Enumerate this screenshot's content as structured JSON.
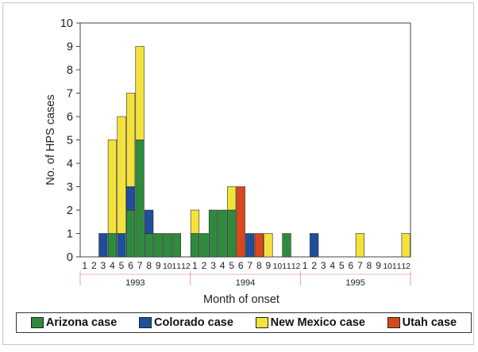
{
  "chart_data": {
    "type": "bar",
    "stacked": true,
    "ylabel": "No. of HPS cases",
    "xlabel": "Month of onset",
    "ylim": [
      0,
      10
    ],
    "yticks": [
      0,
      1,
      2,
      3,
      4,
      5,
      6,
      7,
      8,
      9,
      10
    ],
    "grid": false,
    "legend_position": "bottom",
    "years": [
      {
        "label": "1993",
        "months": [
          "1",
          "2",
          "3",
          "4",
          "5",
          "6",
          "7",
          "8",
          "9",
          "10",
          "11",
          "12"
        ]
      },
      {
        "label": "1994",
        "months": [
          "1",
          "2",
          "3",
          "4",
          "5",
          "6",
          "7",
          "8",
          "9",
          "10",
          "11",
          "12"
        ]
      },
      {
        "label": "1995",
        "months": [
          "1",
          "2",
          "3",
          "4",
          "5",
          "6",
          "7",
          "8",
          "9",
          "10",
          "11",
          "12"
        ]
      }
    ],
    "series": [
      {
        "name": "Arizona case",
        "color": "#2e8b3d",
        "values": [
          0,
          0,
          0,
          1,
          0,
          2,
          5,
          1,
          1,
          1,
          1,
          0,
          1,
          1,
          2,
          2,
          2,
          0,
          0,
          0,
          0,
          0,
          1,
          0,
          0,
          0,
          0,
          0,
          0,
          0,
          0,
          0,
          0,
          0,
          0,
          0
        ]
      },
      {
        "name": "Colorado case",
        "color": "#1f4e9c",
        "values": [
          0,
          0,
          1,
          0,
          1,
          1,
          0,
          1,
          0,
          0,
          0,
          0,
          0,
          0,
          0,
          0,
          0,
          0,
          1,
          0,
          0,
          0,
          0,
          0,
          0,
          1,
          0,
          0,
          0,
          0,
          0,
          0,
          0,
          0,
          0,
          0
        ]
      },
      {
        "name": "New Mexico case",
        "color": "#f4e23c",
        "values": [
          0,
          0,
          0,
          4,
          5,
          4,
          4,
          0,
          0,
          0,
          0,
          0,
          1,
          0,
          0,
          0,
          1,
          0,
          0,
          0,
          1,
          0,
          0,
          0,
          0,
          0,
          0,
          0,
          0,
          0,
          1,
          0,
          0,
          0,
          0,
          1
        ]
      },
      {
        "name": "Utah case",
        "color": "#d9481c",
        "values": [
          0,
          0,
          0,
          0,
          0,
          0,
          0,
          0,
          0,
          0,
          0,
          0,
          0,
          0,
          0,
          0,
          0,
          3,
          0,
          1,
          0,
          0,
          0,
          0,
          0,
          0,
          0,
          0,
          0,
          0,
          0,
          0,
          0,
          0,
          0,
          0
        ]
      }
    ]
  }
}
